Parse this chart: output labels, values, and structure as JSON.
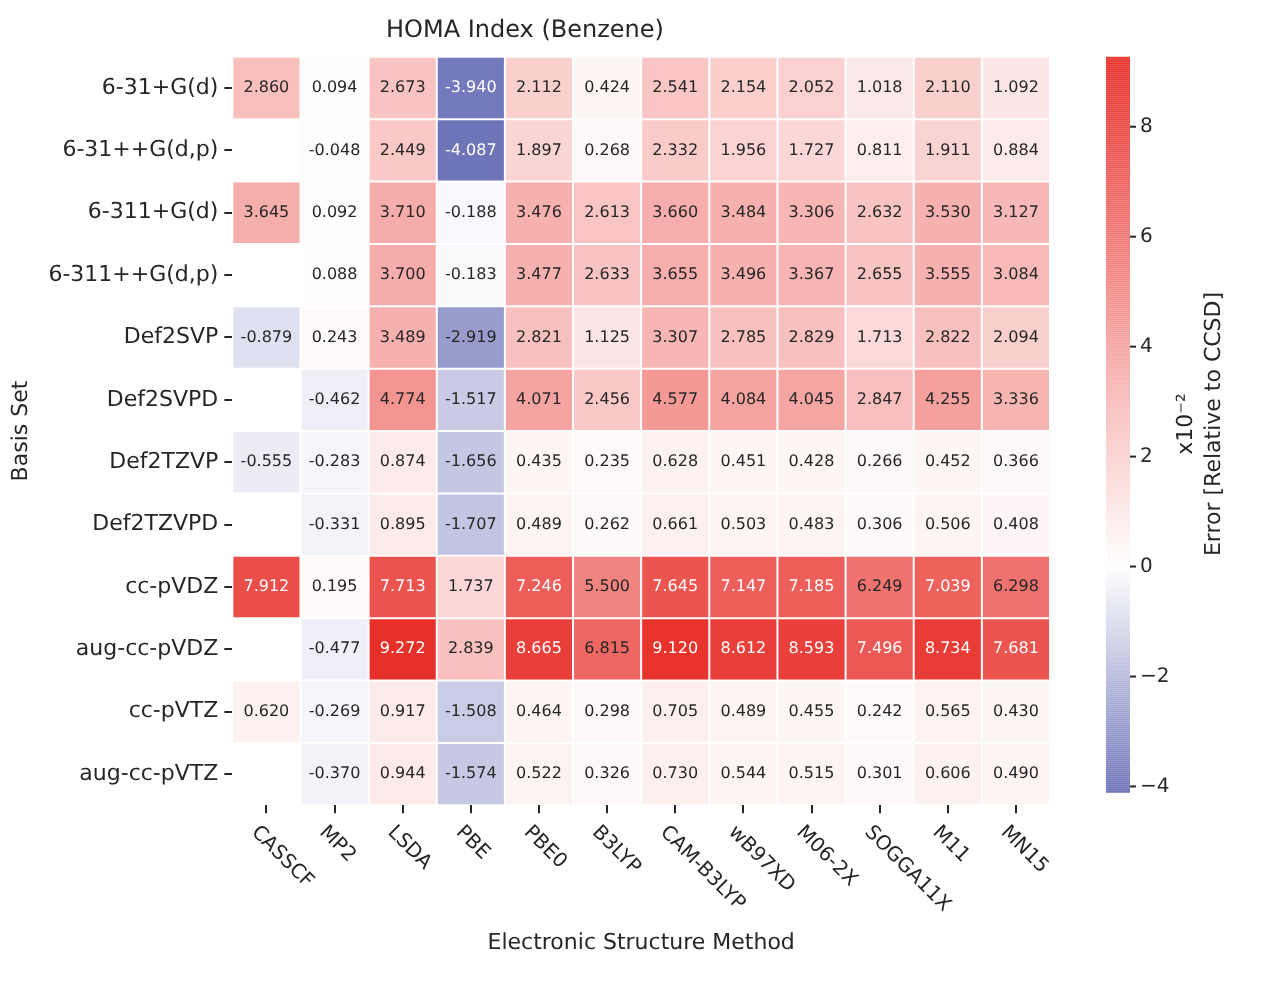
{
  "chart_data": {
    "type": "heatmap",
    "title": "HOMA Index (Benzene)",
    "xlabel": "Electronic Structure Method",
    "ylabel": "Basis Set",
    "clabel": "x10⁻²\nError [Relative to CCSD]",
    "categories": [
      "CASSCF",
      "MP2",
      "LSDA",
      "PBE",
      "PBE0",
      "B3LYP",
      "CAM-B3LYP",
      "wB97XD",
      "M06-2X",
      "SOGGA11X",
      "M11",
      "MN15"
    ],
    "y_categories": [
      "6-31+G(d)",
      "6-31++G(d,p)",
      "6-311+G(d)",
      "6-311++G(d,p)",
      "Def2SVP",
      "Def2SVPD",
      "Def2TZVP",
      "Def2TZVPD",
      "cc-pVDZ",
      "aug-cc-pVDZ",
      "cc-pVTZ",
      "aug-cc-pVTZ"
    ],
    "cells": [
      [
        2.86,
        0.094,
        2.673,
        -3.94,
        2.112,
        0.424,
        2.541,
        2.154,
        2.052,
        1.018,
        2.11,
        1.092
      ],
      [
        null,
        -0.048,
        2.449,
        -4.087,
        1.897,
        0.268,
        2.332,
        1.956,
        1.727,
        0.811,
        1.911,
        0.884
      ],
      [
        3.645,
        0.092,
        3.71,
        -0.188,
        3.476,
        2.613,
        3.66,
        3.484,
        3.306,
        2.632,
        3.53,
        3.127
      ],
      [
        null,
        0.088,
        3.7,
        -0.183,
        3.477,
        2.633,
        3.655,
        3.496,
        3.367,
        2.655,
        3.555,
        3.084
      ],
      [
        -0.879,
        0.243,
        3.489,
        -2.919,
        2.821,
        1.125,
        3.307,
        2.785,
        2.829,
        1.713,
        2.822,
        2.094
      ],
      [
        null,
        -0.462,
        4.774,
        -1.517,
        4.071,
        2.456,
        4.577,
        4.084,
        4.045,
        2.847,
        4.255,
        3.336
      ],
      [
        -0.555,
        -0.283,
        0.874,
        -1.656,
        0.435,
        0.235,
        0.628,
        0.451,
        0.428,
        0.266,
        0.452,
        0.366
      ],
      [
        null,
        -0.331,
        0.895,
        -1.707,
        0.489,
        0.262,
        0.661,
        0.503,
        0.483,
        0.306,
        0.506,
        0.408
      ],
      [
        7.912,
        0.195,
        7.713,
        1.737,
        7.246,
        5.5,
        7.645,
        7.147,
        7.185,
        6.249,
        7.039,
        6.298
      ],
      [
        null,
        -0.477,
        9.272,
        2.839,
        8.665,
        6.815,
        9.12,
        8.612,
        8.593,
        7.496,
        8.734,
        7.681
      ],
      [
        0.62,
        -0.269,
        0.917,
        -1.508,
        0.464,
        0.298,
        0.705,
        0.489,
        0.455,
        0.242,
        0.565,
        0.43
      ],
      [
        null,
        -0.37,
        0.944,
        -1.574,
        0.522,
        0.326,
        0.73,
        0.544,
        0.515,
        0.301,
        0.606,
        0.49
      ]
    ],
    "cell_labels": [
      [
        "2.860",
        "0.094",
        "2.673",
        "-3.940",
        "2.112",
        "0.424",
        "2.541",
        "2.154",
        "2.052",
        "1.018",
        "2.110",
        "1.092"
      ],
      [
        null,
        "-0.048",
        "2.449",
        "-4.087",
        "1.897",
        "0.268",
        "2.332",
        "1.956",
        "1.727",
        "0.811",
        "1.911",
        "0.884"
      ],
      [
        "3.645",
        "0.092",
        "3.710",
        "-0.188",
        "3.476",
        "2.613",
        "3.660",
        "3.484",
        "3.306",
        "2.632",
        "3.530",
        "3.127"
      ],
      [
        null,
        "0.088",
        "3.700",
        "-0.183",
        "3.477",
        "2.633",
        "3.655",
        "3.496",
        "3.367",
        "2.655",
        "3.555",
        "3.084"
      ],
      [
        "-0.879",
        "0.243",
        "3.489",
        "-2.919",
        "2.821",
        "1.125",
        "3.307",
        "2.785",
        "2.829",
        "1.713",
        "2.822",
        "2.094"
      ],
      [
        null,
        "-0.462",
        "4.774",
        "-1.517",
        "4.071",
        "2.456",
        "4.577",
        "4.084",
        "4.045",
        "2.847",
        "4.255",
        "3.336"
      ],
      [
        "-0.555",
        "-0.283",
        "0.874",
        "-1.656",
        "0.435",
        "0.235",
        "0.628",
        "0.451",
        "0.428",
        "0.266",
        "0.452",
        "0.366"
      ],
      [
        null,
        "-0.331",
        "0.895",
        "-1.707",
        "0.489",
        "0.262",
        "0.661",
        "0.503",
        "0.483",
        "0.306",
        "0.506",
        "0.408"
      ],
      [
        "7.912",
        "0.195",
        "7.713",
        "1.737",
        "7.246",
        "5.500",
        "7.645",
        "7.147",
        "7.185",
        "6.249",
        "7.039",
        "6.298"
      ],
      [
        null,
        "-0.477",
        "9.272",
        "2.839",
        "8.665",
        "6.815",
        "9.120",
        "8.612",
        "8.593",
        "7.496",
        "8.734",
        "7.681"
      ],
      [
        "0.620",
        "-0.269",
        "0.917",
        "-1.508",
        "0.464",
        "0.298",
        "0.705",
        "0.489",
        "0.455",
        "0.242",
        "0.565",
        "0.430"
      ],
      [
        null,
        "-0.370",
        "0.944",
        "-1.574",
        "0.522",
        "0.326",
        "0.730",
        "0.544",
        "0.515",
        "0.301",
        "0.606",
        "0.490"
      ]
    ],
    "clim": [
      -4.087,
      9.272
    ],
    "cticks": [
      -4,
      -2,
      0,
      2,
      4,
      6,
      8
    ]
  }
}
